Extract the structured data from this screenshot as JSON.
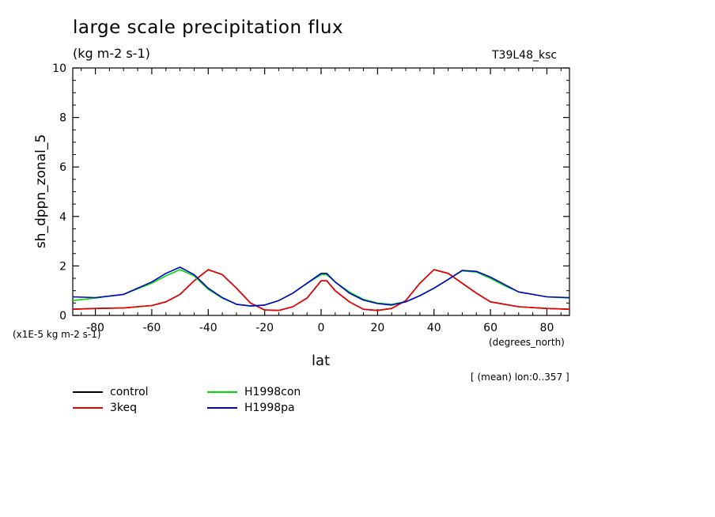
{
  "chart_data": {
    "type": "line",
    "title": "large scale precipitation flux",
    "subtitle": "(kg m-2 s-1)",
    "run_label": "T39L48_ksc",
    "ylabel": "sh_dppn_zonal_5",
    "xlabel": "lat",
    "x_units": "(degrees_north)",
    "y_scale_note": "(x1E-5 kg m-2 s-1)",
    "mean_note": "[ (mean) lon:0..357 ]",
    "xlim": [
      -88,
      88
    ],
    "ylim": [
      0,
      10
    ],
    "x_ticks": [
      -80,
      -60,
      -40,
      -20,
      0,
      20,
      40,
      60,
      80
    ],
    "x_tick_labels": [
      "-80",
      "-60",
      "-40",
      "-20",
      "0",
      "20",
      "40",
      "60",
      "80"
    ],
    "y_ticks": [
      0,
      2,
      4,
      6,
      8,
      10
    ],
    "y_tick_labels": [
      "0",
      "2",
      "4",
      "6",
      "8",
      "10"
    ],
    "grid": false,
    "legend_position": "below",
    "x": [
      -88,
      -80,
      -70,
      -60,
      -55,
      -50,
      -45,
      -40,
      -35,
      -30,
      -25,
      -20,
      -15,
      -10,
      -5,
      0,
      2,
      5,
      10,
      15,
      20,
      25,
      30,
      35,
      40,
      45,
      50,
      55,
      60,
      65,
      70,
      80,
      88
    ],
    "series": [
      {
        "name": "control",
        "color": "#000000",
        "values": [
          0.25,
          0.28,
          0.3,
          0.4,
          0.55,
          0.85,
          1.4,
          1.85,
          1.65,
          1.1,
          0.5,
          0.22,
          0.2,
          0.35,
          0.7,
          1.4,
          1.4,
          1.0,
          0.55,
          0.25,
          0.2,
          0.28,
          0.6,
          1.3,
          1.85,
          1.7,
          1.3,
          0.9,
          0.55,
          0.45,
          0.35,
          0.28,
          0.25
        ]
      },
      {
        "name": "3keq",
        "color": "#ee0000",
        "values": [
          0.25,
          0.28,
          0.3,
          0.4,
          0.55,
          0.85,
          1.4,
          1.85,
          1.65,
          1.1,
          0.5,
          0.22,
          0.2,
          0.35,
          0.7,
          1.4,
          1.4,
          1.0,
          0.55,
          0.25,
          0.2,
          0.28,
          0.6,
          1.3,
          1.85,
          1.7,
          1.3,
          0.9,
          0.55,
          0.45,
          0.35,
          0.28,
          0.25
        ]
      },
      {
        "name": "H1998con",
        "color": "#00dd00",
        "values": [
          0.6,
          0.7,
          0.85,
          1.3,
          1.6,
          1.85,
          1.6,
          1.05,
          0.7,
          0.45,
          0.38,
          0.42,
          0.6,
          0.9,
          1.3,
          1.65,
          1.65,
          1.35,
          0.95,
          0.65,
          0.5,
          0.45,
          0.55,
          0.8,
          1.1,
          1.45,
          1.8,
          1.75,
          1.5,
          1.2,
          0.95,
          0.75,
          0.7
        ]
      },
      {
        "name": "H1998pa",
        "color": "#0000cc",
        "values": [
          0.75,
          0.72,
          0.85,
          1.35,
          1.7,
          1.95,
          1.65,
          1.1,
          0.72,
          0.45,
          0.38,
          0.42,
          0.6,
          0.9,
          1.3,
          1.7,
          1.7,
          1.35,
          0.9,
          0.62,
          0.48,
          0.42,
          0.55,
          0.8,
          1.1,
          1.45,
          1.82,
          1.78,
          1.55,
          1.25,
          0.95,
          0.75,
          0.72
        ]
      }
    ]
  }
}
